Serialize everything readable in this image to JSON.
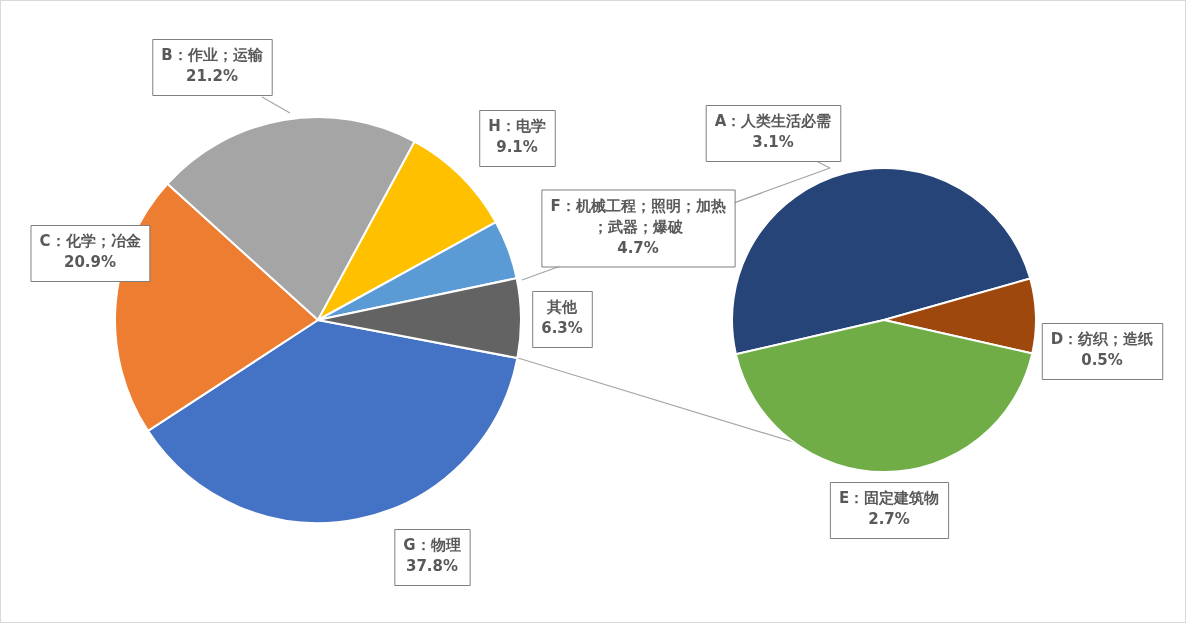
{
  "chart_data": [
    {
      "type": "pie",
      "categories": [
        "G：物理",
        "C：化学；冶金",
        "B：作业；运输",
        "H：电学",
        "F：机械工程；照明；加热；武器；爆破",
        "其他"
      ],
      "values": [
        37.8,
        20.9,
        21.2,
        9.1,
        4.7,
        6.3
      ],
      "colors": [
        "#4472c4",
        "#ed7d31",
        "#a5a5a5",
        "#ffc000",
        "#5b9bd5",
        "#636363"
      ],
      "value_labels": [
        "37.8%",
        "20.9%",
        "21.2%",
        "9.1%",
        "4.7%",
        "6.3%"
      ],
      "legend": false
    },
    {
      "type": "pie",
      "categories": [
        "A：人类生活必需",
        "D：纺织；造纸",
        "E：固定建筑物"
      ],
      "values": [
        3.1,
        0.5,
        2.7
      ],
      "colors": [
        "#264478",
        "#9e480e",
        "#70ad47"
      ],
      "value_labels": [
        "3.1%",
        "0.5%",
        "2.7%"
      ],
      "legend": false
    }
  ]
}
